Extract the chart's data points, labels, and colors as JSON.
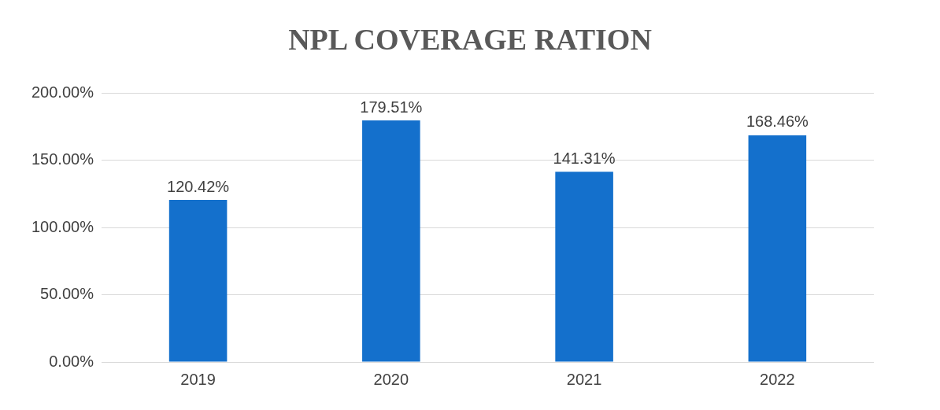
{
  "chart_data": {
    "type": "bar",
    "title": "NPL COVERAGE RATION",
    "categories": [
      "2019",
      "2020",
      "2021",
      "2022"
    ],
    "series": [
      {
        "color": "#1470cc",
        "values": [
          120.42,
          179.51,
          141.31,
          168.46
        ],
        "value_labels": [
          "120.42%",
          "179.51%",
          "141.31%",
          "168.46%"
        ]
      }
    ],
    "ylim": [
      0,
      200
    ],
    "yticks": [
      {
        "value": 0,
        "label": "0.00%"
      },
      {
        "value": 50,
        "label": "50.00%"
      },
      {
        "value": 100,
        "label": "100.00%"
      },
      {
        "value": 150,
        "label": "150.00%"
      },
      {
        "value": 200,
        "label": "200.00%"
      }
    ],
    "grid": "y"
  }
}
